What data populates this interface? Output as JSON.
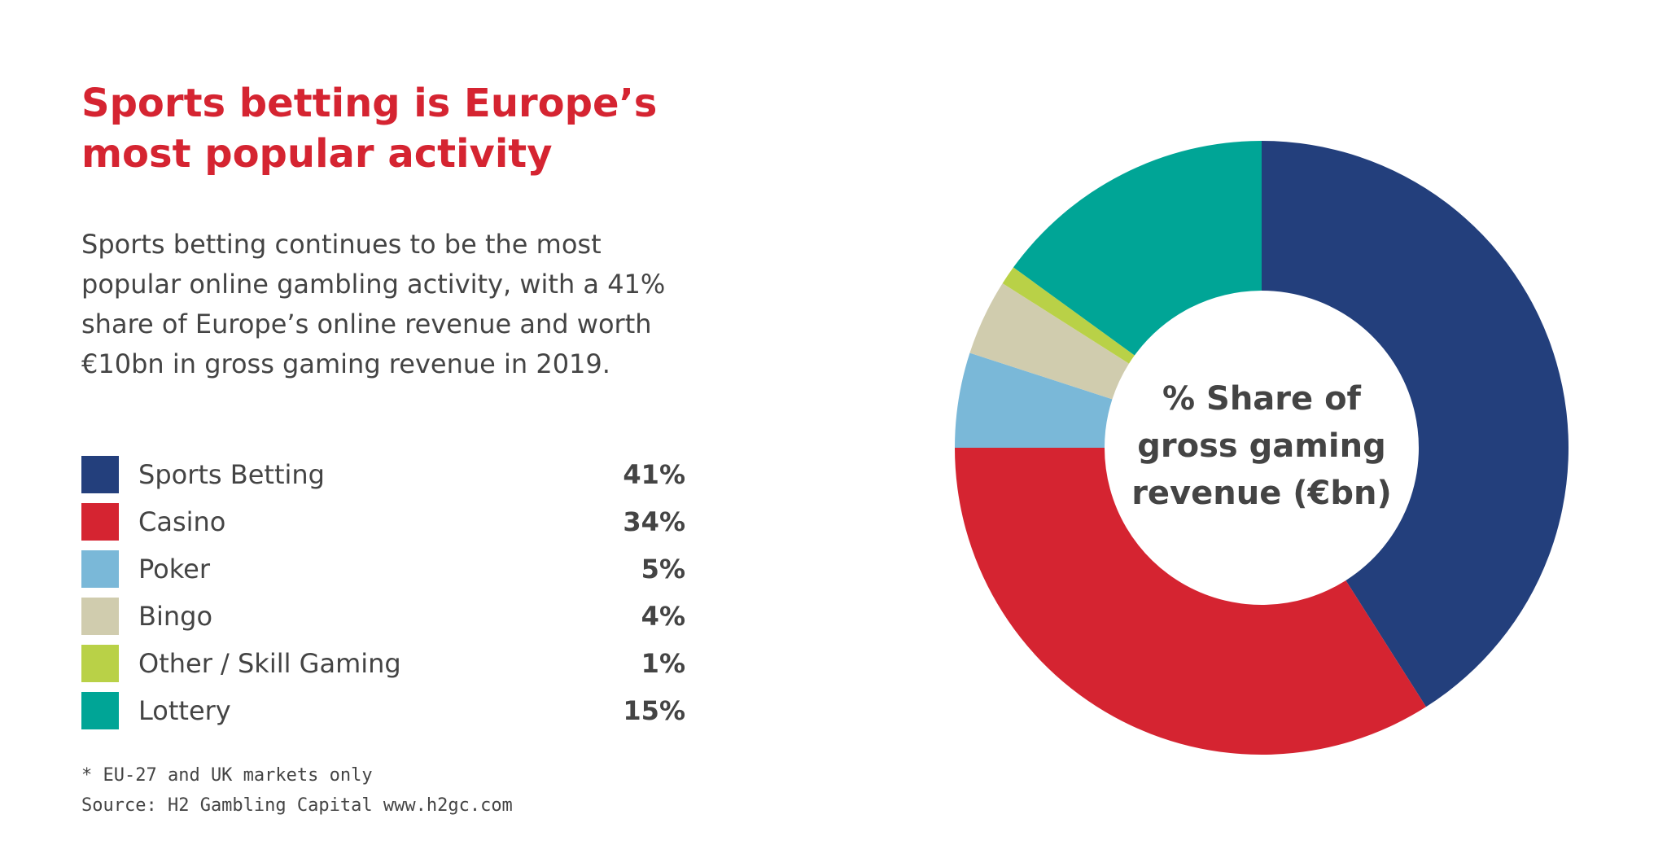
{
  "header": {
    "title": "Sports betting is Europe’s\nmost popular activity",
    "description": "Sports betting continues to be the most\npopular online gambling activity, with a 41%\nshare of Europe’s online revenue and worth\n€10bn in gross gaming revenue in 2019."
  },
  "footer": {
    "note": "* EU-27 and UK markets only",
    "source": "Source: H2 Gambling Capital www.h2gc.com"
  },
  "legend": {
    "items": [
      {
        "label": "Sports Betting",
        "value": "41%",
        "color": "#233f7c"
      },
      {
        "label": "Casino",
        "value": "34%",
        "color": "#d52431"
      },
      {
        "label": "Poker",
        "value": "5%",
        "color": "#7ab8d8"
      },
      {
        "label": "Bingo",
        "value": "4%",
        "color": "#d0ccae"
      },
      {
        "label": "Other / Skill Gaming",
        "value": "1%",
        "color": "#b9d147"
      },
      {
        "label": "Lottery",
        "value": "15%",
        "color": "#00a596"
      }
    ]
  },
  "chart_data": {
    "type": "pie",
    "donut": true,
    "title": "",
    "center_label": [
      "% Share of",
      "gross gaming",
      "revenue (€bn)"
    ],
    "legend_position": "left",
    "slices": [
      {
        "label": "Sports Betting",
        "value": 41,
        "color": "#233f7c"
      },
      {
        "label": "Casino",
        "value": 34,
        "color": "#d52431"
      },
      {
        "label": "Poker",
        "value": 5,
        "color": "#7ab8d8"
      },
      {
        "label": "Bingo",
        "value": 4,
        "color": "#d0ccae"
      },
      {
        "label": "Other / Skill Gaming",
        "value": 1,
        "color": "#b9d147"
      },
      {
        "label": "Lottery",
        "value": 15,
        "color": "#00a596"
      }
    ],
    "start_angle_deg": 0,
    "direction": "clockwise"
  }
}
